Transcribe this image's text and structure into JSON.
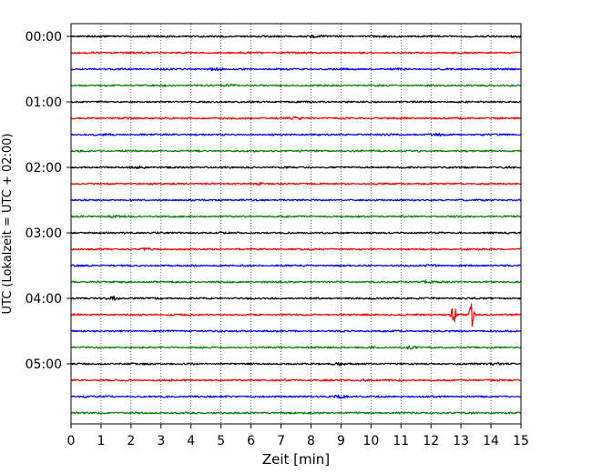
{
  "chart_data": {
    "type": "line",
    "xlabel": "Zeit  [min]",
    "ylabel": "UTC (Lokalzeit = UTC + 02:00)",
    "xlim": [
      0,
      15
    ],
    "x_ticks": [
      0,
      1,
      2,
      3,
      4,
      5,
      6,
      7,
      8,
      9,
      10,
      11,
      12,
      13,
      14,
      15
    ],
    "x_tick_labels": [
      "0",
      "1",
      "2",
      "3",
      "4",
      "5",
      "6",
      "7",
      "8",
      "9",
      "10",
      "11",
      "12",
      "13",
      "14",
      "15"
    ],
    "y_tick_labels": [
      {
        "label": "00:00",
        "row": 0
      },
      {
        "label": "01:00",
        "row": 4
      },
      {
        "label": "02:00",
        "row": 8
      },
      {
        "label": "03:00",
        "row": 12
      },
      {
        "label": "04:00",
        "row": 16
      },
      {
        "label": "05:00",
        "row": 20
      }
    ],
    "grid": "vertical dotted",
    "minutes_per_row": 15,
    "row_colors": [
      "#000000",
      "#ff0000",
      "#0000ff",
      "#008000"
    ],
    "rows": [
      {
        "start": "00:00",
        "color": "#000000",
        "events": [
          {
            "t": 8.2,
            "amp": 0.25
          },
          {
            "t": 14.8,
            "amp": 0.3
          }
        ]
      },
      {
        "start": "00:15",
        "color": "#ff0000",
        "events": []
      },
      {
        "start": "00:30",
        "color": "#0000ff",
        "events": [
          {
            "t": 4.8,
            "amp": 0.35
          }
        ]
      },
      {
        "start": "00:45",
        "color": "#008000",
        "events": [
          {
            "t": 5.3,
            "amp": 0.3
          }
        ]
      },
      {
        "start": "01:00",
        "color": "#000000",
        "events": []
      },
      {
        "start": "01:15",
        "color": "#ff0000",
        "events": [
          {
            "t": 7.5,
            "amp": 0.25
          }
        ]
      },
      {
        "start": "01:30",
        "color": "#0000ff",
        "events": [
          {
            "t": 1.2,
            "amp": 0.25
          },
          {
            "t": 12.3,
            "amp": 0.25
          }
        ]
      },
      {
        "start": "01:45",
        "color": "#008000",
        "events": []
      },
      {
        "start": "02:00",
        "color": "#000000",
        "events": [
          {
            "t": 2.3,
            "amp": 0.3
          }
        ]
      },
      {
        "start": "02:15",
        "color": "#ff0000",
        "events": [
          {
            "t": 6.3,
            "amp": 0.25
          }
        ]
      },
      {
        "start": "02:30",
        "color": "#0000ff",
        "events": []
      },
      {
        "start": "02:45",
        "color": "#008000",
        "events": [
          {
            "t": 1.5,
            "amp": 0.25
          }
        ]
      },
      {
        "start": "03:00",
        "color": "#000000",
        "events": []
      },
      {
        "start": "03:15",
        "color": "#ff0000",
        "events": [
          {
            "t": 2.5,
            "amp": 0.25
          }
        ]
      },
      {
        "start": "03:30",
        "color": "#0000ff",
        "events": [
          {
            "t": 12.0,
            "amp": 0.25
          }
        ]
      },
      {
        "start": "03:45",
        "color": "#008000",
        "events": [
          {
            "t": 11.8,
            "amp": 0.45
          }
        ]
      },
      {
        "start": "04:00",
        "color": "#000000",
        "events": [
          {
            "t": 1.4,
            "amp": 0.45
          }
        ]
      },
      {
        "start": "04:15",
        "color": "#ff0000",
        "events": [
          {
            "t": 12.75,
            "amp": 4.3
          },
          {
            "t": 13.35,
            "amp": 4.3
          }
        ]
      },
      {
        "start": "04:30",
        "color": "#0000ff",
        "events": []
      },
      {
        "start": "04:45",
        "color": "#008000",
        "events": [
          {
            "t": 11.3,
            "amp": 0.35
          }
        ]
      },
      {
        "start": "05:00",
        "color": "#000000",
        "events": [
          {
            "t": 8.9,
            "amp": 0.45
          },
          {
            "t": 14.1,
            "amp": 0.35
          }
        ]
      },
      {
        "start": "05:15",
        "color": "#ff0000",
        "events": [
          {
            "t": 9.8,
            "amp": 0.3
          }
        ]
      },
      {
        "start": "05:30",
        "color": "#0000ff",
        "events": [
          {
            "t": 9.0,
            "amp": 0.45
          }
        ]
      },
      {
        "start": "05:45",
        "color": "#008000",
        "events": []
      }
    ]
  }
}
